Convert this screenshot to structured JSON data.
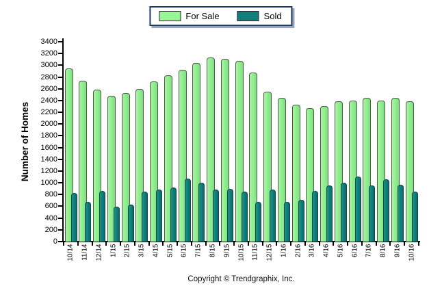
{
  "legend": {
    "items": [
      {
        "label": "For Sale",
        "color": "#98f598"
      },
      {
        "label": "Sold",
        "color": "#127d7b"
      }
    ]
  },
  "chart_data": {
    "type": "bar",
    "title": "",
    "xlabel": "",
    "ylabel": "Number of Homes",
    "ylim": [
      0,
      3400
    ],
    "ytick_step": 200,
    "grid": false,
    "legend_position": "top-center",
    "categories": [
      "10/14",
      "11/14",
      "12/14",
      "1/15",
      "2/15",
      "3/15",
      "4/15",
      "5/15",
      "6/15",
      "7/15",
      "8/15",
      "9/15",
      "10/15",
      "11/15",
      "12/15",
      "1/16",
      "2/16",
      "3/16",
      "4/16",
      "5/16",
      "6/16",
      "7/16",
      "8/16",
      "9/16",
      "10/16"
    ],
    "series": [
      {
        "name": "For Sale",
        "color_fill": "#90ee90",
        "color_edge": "#4d5a4d",
        "values": [
          2950,
          2740,
          2590,
          2480,
          2530,
          2600,
          2730,
          2830,
          2920,
          3040,
          3130,
          3110,
          3070,
          2880,
          2550,
          2450,
          2330,
          2270,
          2310,
          2390,
          2400,
          2440,
          2400,
          2440,
          2390
        ]
      },
      {
        "name": "Sold",
        "color_fill": "#0f7d79",
        "color_edge": "#144746",
        "values": [
          830,
          670,
          860,
          590,
          630,
          850,
          890,
          920,
          1070,
          1000,
          880,
          900,
          850,
          670,
          890,
          670,
          710,
          860,
          950,
          1000,
          1110,
          960,
          1060,
          970,
          850
        ]
      }
    ]
  },
  "footer": {
    "copyright": "Copyright © Trendgraphix, Inc."
  }
}
